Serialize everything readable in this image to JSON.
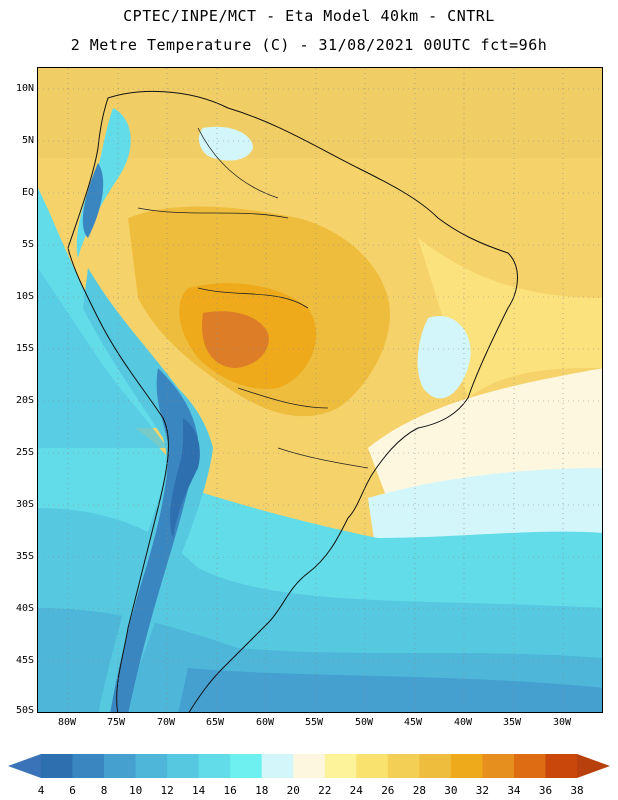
{
  "header": {
    "line1": "CPTEC/INPE/MCT -  Eta Model 40km - CNTRL",
    "line2": "2 Metre Temperature (C) - 31/08/2021 00UTC fct=96h"
  },
  "map": {
    "lat_labels": [
      "10N",
      "5N",
      "EQ",
      "5S",
      "10S",
      "15S",
      "20S",
      "25S",
      "30S",
      "35S",
      "40S",
      "45S",
      "50S"
    ],
    "lon_labels": [
      "80W",
      "75W",
      "70W",
      "65W",
      "60W",
      "55W",
      "50W",
      "45W",
      "40W",
      "35W",
      "30W"
    ],
    "lat_range": [
      -50,
      12
    ],
    "lon_range": [
      -83,
      -26
    ]
  },
  "colorbar": {
    "labels": [
      "4",
      "6",
      "8",
      "10",
      "12",
      "14",
      "16",
      "18",
      "20",
      "22",
      "24",
      "26",
      "28",
      "30",
      "32",
      "34",
      "36",
      "38"
    ],
    "colors": [
      "#2e6fb0",
      "#3a86c1",
      "#45a0cf",
      "#4db6d9",
      "#56c9e1",
      "#62dce8",
      "#6ff0f0",
      "#d3f6fb",
      "#fdf7e0",
      "#fdf39b",
      "#f9e26e",
      "#f4cf55",
      "#efbd3e",
      "#eeaa1b",
      "#e68f1f",
      "#dd6c12",
      "#c9470a"
    ],
    "low_arrow_color": "#3a73b8",
    "high_arrow_color": "#b8400c"
  },
  "colors": {
    "background_warm": "#f6d36a",
    "andes_cold": "#3a86c1",
    "ocean_cold": "#45a0cf",
    "hot_core": "#dd7d28"
  }
}
